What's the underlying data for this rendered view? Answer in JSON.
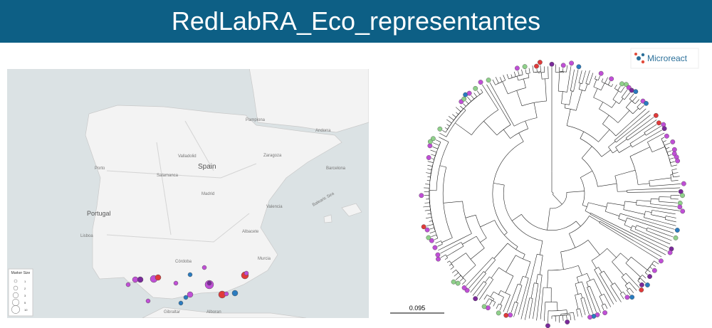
{
  "header": {
    "title": "RedLabRA_Eco_representantes"
  },
  "logo": {
    "text": "Microreact"
  },
  "map": {
    "labels": {
      "spain": "Spain",
      "portugal": "Portugal",
      "madrid": "Madrid",
      "andorra": "Andorra",
      "barcelona": "Barcelona",
      "valencia": "Valencia",
      "zaragoza": "Zaragoza",
      "lisboa": "Lisboa",
      "porto": "Porto",
      "valladolid": "Valladolid",
      "salamanca": "Salamanca",
      "albacete": "Albacete",
      "cordoba": "Córdoba",
      "murcia": "Murcia",
      "gibraltar": "Gibraltar",
      "alboran": "Alboran",
      "balearic": "Balearic Sea",
      "pamplona": "Pamplona"
    },
    "legend": {
      "title": "Marker Size",
      "items": [
        "1",
        "2",
        "3",
        "5",
        "10"
      ]
    }
  },
  "tree": {
    "scale_label": "0.095"
  }
}
